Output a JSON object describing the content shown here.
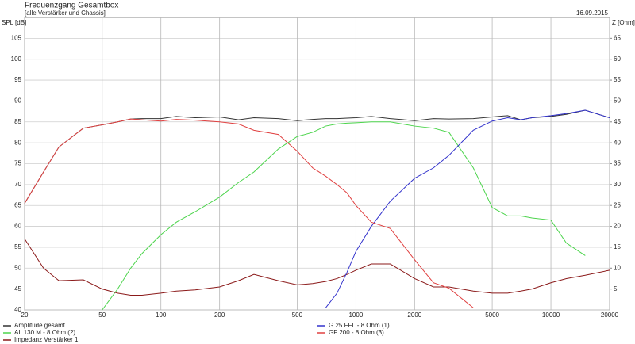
{
  "chart_data": {
    "type": "line",
    "title": "Frequenzgang Gesamtbox",
    "subtitle": "[alle Verstärker und Chassis]",
    "date": "16.09.2015",
    "y_label": "SPL [dB]",
    "y2_label": "Z [Ohm]",
    "log_x": true,
    "grid": true,
    "xlim": [
      20,
      20000
    ],
    "xticks": [
      20,
      50,
      100,
      200,
      500,
      1000,
      2000,
      5000,
      10000,
      20000
    ],
    "ylim": [
      40,
      110
    ],
    "yticks": [
      40,
      45,
      50,
      55,
      60,
      65,
      70,
      75,
      80,
      85,
      90,
      95,
      100,
      105
    ],
    "y2lim": [
      0,
      70
    ],
    "y2ticks": [
      5,
      10,
      15,
      20,
      25,
      30,
      35,
      40,
      45,
      50,
      55,
      60,
      65
    ],
    "x": [
      20,
      25,
      30,
      40,
      50,
      60,
      70,
      80,
      100,
      120,
      150,
      200,
      250,
      300,
      400,
      500,
      600,
      700,
      800,
      900,
      1000,
      1200,
      1500,
      2000,
      2500,
      3000,
      4000,
      5000,
      6000,
      7000,
      8000,
      10000,
      12000,
      15000,
      20000
    ],
    "series": [
      {
        "name": "Amplitude gesamt",
        "color": "#333333",
        "values": [
          65.5,
          73,
          79,
          83.5,
          84.3,
          85,
          85.7,
          85.8,
          85.8,
          86.3,
          86,
          86.2,
          85.5,
          86,
          85.8,
          85.3,
          85.6,
          85.8,
          85.8,
          85.9,
          86,
          86.3,
          85.8,
          85.3,
          85.8,
          85.7,
          85.8,
          86.2,
          86.5,
          85.5,
          86,
          86.3,
          86.8,
          87.8,
          86
        ]
      },
      {
        "name": "AL 130 M - 8 Ohm (2)",
        "color": "#4cd44c",
        "values": [
          null,
          null,
          null,
          null,
          40,
          45,
          50,
          53.5,
          58,
          61,
          63.5,
          67,
          70.5,
          73,
          78.5,
          81.5,
          82.5,
          84,
          84.5,
          84.7,
          84.8,
          85,
          85,
          84,
          83.5,
          82.5,
          74,
          64.5,
          62.5,
          62.5,
          62,
          61.5,
          56,
          53,
          null
        ]
      },
      {
        "name": "Impedanz Verstärker 1",
        "color": "#8b1a1a",
        "axis": "y2",
        "values": [
          17,
          10,
          7,
          7.2,
          5,
          4,
          3.5,
          3.5,
          4,
          4.5,
          4.8,
          5.5,
          7,
          8.5,
          7,
          6,
          6.3,
          6.8,
          7.5,
          8.5,
          9.5,
          11,
          11,
          7.5,
          5.5,
          5.5,
          4.5,
          4,
          4,
          4.5,
          5,
          6.5,
          7.5,
          8.3,
          9.5
        ]
      },
      {
        "name": "G 25 FFL - 8 Ohm (1)",
        "color": "#3333cc",
        "values": [
          null,
          null,
          null,
          null,
          null,
          null,
          null,
          null,
          null,
          null,
          null,
          null,
          null,
          null,
          null,
          null,
          null,
          40.5,
          44,
          49,
          54,
          60,
          66,
          71.5,
          74,
          77,
          83,
          85.2,
          86,
          85.5,
          86,
          86.5,
          87,
          87.8,
          86
        ]
      },
      {
        "name": "GF 200 - 8 Ohm (3)",
        "color": "#e04040",
        "values": [
          65.5,
          73,
          79,
          83.5,
          84.3,
          85,
          85.7,
          85.5,
          85.2,
          85.6,
          85.4,
          85,
          84.5,
          83,
          82,
          78,
          74,
          72,
          70,
          68,
          65,
          61,
          59.5,
          52,
          46.5,
          45.2,
          40.5,
          null,
          null,
          null,
          null,
          null,
          null,
          null,
          null
        ]
      }
    ]
  }
}
